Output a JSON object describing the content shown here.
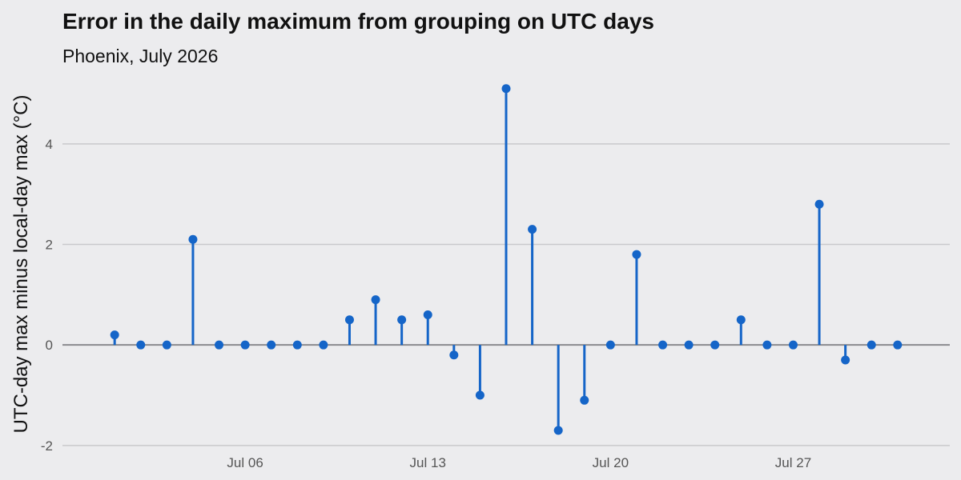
{
  "chart_data": {
    "type": "scatter",
    "style": "lollipop",
    "title": "Error in the daily maximum from grouping on UTC days",
    "subtitle": "Phoenix, July 2026",
    "xlabel": "",
    "ylabel": "UTC-day max minus local-day max (°C)",
    "x": [
      "2026-07-01",
      "2026-07-02",
      "2026-07-03",
      "2026-07-04",
      "2026-07-05",
      "2026-07-06",
      "2026-07-07",
      "2026-07-08",
      "2026-07-09",
      "2026-07-10",
      "2026-07-11",
      "2026-07-12",
      "2026-07-13",
      "2026-07-14",
      "2026-07-15",
      "2026-07-16",
      "2026-07-17",
      "2026-07-18",
      "2026-07-19",
      "2026-07-20",
      "2026-07-21",
      "2026-07-22",
      "2026-07-23",
      "2026-07-24",
      "2026-07-25",
      "2026-07-26",
      "2026-07-27",
      "2026-07-28",
      "2026-07-29",
      "2026-07-30",
      "2026-07-31"
    ],
    "values": [
      0.2,
      0,
      0,
      2.1,
      0,
      0,
      0,
      0,
      0,
      0.5,
      0.9,
      0.5,
      0.6,
      -0.2,
      -1.0,
      5.1,
      2.3,
      -1.7,
      -1.1,
      0,
      1.8,
      0,
      0,
      0,
      0.5,
      0,
      0,
      2.8,
      -0.3,
      0,
      0
    ],
    "xlim": [
      "2026-06-29",
      "2026-08-02"
    ],
    "ylim": [
      -2.05,
      5.35
    ],
    "x_ticks": [
      {
        "date": "2026-07-06",
        "label": "Jul 06"
      },
      {
        "date": "2026-07-13",
        "label": "Jul 13"
      },
      {
        "date": "2026-07-20",
        "label": "Jul 20"
      },
      {
        "date": "2026-07-27",
        "label": "Jul 27"
      }
    ],
    "y_ticks": [
      -2,
      0,
      2,
      4
    ],
    "y_tick_labels": [
      "-2",
      "0",
      "2",
      "4"
    ],
    "grid": true,
    "colors": {
      "marker": "#1565c8",
      "background": "#ececee",
      "grid": "#c9c9cc",
      "zero_line": "#8a8a8e"
    }
  }
}
